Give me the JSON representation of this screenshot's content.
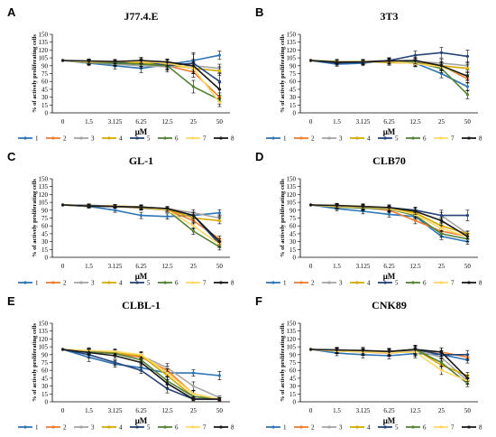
{
  "figure": {
    "y_axis_label": "% of actively proliferating cells",
    "x_axis_label": "μM",
    "legend_labels": [
      "1",
      "2",
      "3",
      "4",
      "5",
      "6",
      "7",
      "8"
    ],
    "series_colors": [
      "#2e75b6",
      "#ed7d31",
      "#a5a5a5",
      "#d4a900",
      "#264478",
      "#548235",
      "#ffd966",
      "#1a1a1a"
    ]
  },
  "chart_data": [
    {
      "type": "line",
      "panel_letter": "A",
      "title": "J77.4.E",
      "categories": [
        "0",
        "1.5",
        "3.125",
        "6.25",
        "12.5",
        "25",
        "50"
      ],
      "ylim": [
        0,
        150
      ],
      "yticks": [
        0,
        15,
        30,
        45,
        60,
        75,
        90,
        105,
        120,
        135,
        150
      ],
      "series": [
        {
          "name": "1",
          "values": [
            100,
            95,
            90,
            85,
            92,
            100,
            110
          ],
          "error": [
            0,
            5,
            6,
            8,
            6,
            12,
            8
          ]
        },
        {
          "name": "2",
          "values": [
            100,
            98,
            97,
            95,
            90,
            78,
            30
          ],
          "error": [
            0,
            4,
            5,
            6,
            8,
            10,
            8
          ]
        },
        {
          "name": "3",
          "values": [
            100,
            96,
            93,
            90,
            88,
            90,
            85
          ],
          "error": [
            0,
            4,
            5,
            5,
            6,
            8,
            8
          ]
        },
        {
          "name": "4",
          "values": [
            100,
            97,
            96,
            95,
            92,
            85,
            80
          ],
          "error": [
            0,
            4,
            5,
            6,
            6,
            10,
            8
          ]
        },
        {
          "name": "5",
          "values": [
            100,
            97,
            95,
            100,
            90,
            95,
            60
          ],
          "error": [
            0,
            4,
            5,
            6,
            12,
            20,
            15
          ]
        },
        {
          "name": "6",
          "values": [
            100,
            96,
            95,
            93,
            90,
            50,
            25
          ],
          "error": [
            0,
            4,
            4,
            5,
            6,
            12,
            8
          ]
        },
        {
          "name": "7",
          "values": [
            100,
            97,
            98,
            98,
            95,
            85,
            20
          ],
          "error": [
            0,
            4,
            4,
            5,
            6,
            10,
            8
          ]
        },
        {
          "name": "8",
          "values": [
            100,
            99,
            98,
            100,
            97,
            90,
            45
          ],
          "error": [
            0,
            4,
            4,
            5,
            6,
            12,
            12
          ]
        }
      ]
    },
    {
      "type": "line",
      "panel_letter": "B",
      "title": "3T3",
      "categories": [
        "0",
        "1.5",
        "3.125",
        "6.25",
        "12.5",
        "25",
        "50"
      ],
      "ylim": [
        0,
        150
      ],
      "yticks": [
        0,
        15,
        30,
        45,
        60,
        75,
        90,
        105,
        120,
        135,
        150
      ],
      "series": [
        {
          "name": "1",
          "values": [
            100,
            93,
            95,
            100,
            95,
            75,
            50
          ],
          "error": [
            0,
            4,
            5,
            5,
            6,
            8,
            8
          ]
        },
        {
          "name": "2",
          "values": [
            100,
            97,
            98,
            100,
            98,
            90,
            65
          ],
          "error": [
            0,
            4,
            4,
            5,
            6,
            8,
            8
          ]
        },
        {
          "name": "3",
          "values": [
            100,
            98,
            97,
            100,
            98,
            95,
            90
          ],
          "error": [
            0,
            4,
            4,
            5,
            6,
            8,
            8
          ]
        },
        {
          "name": "4",
          "values": [
            100,
            98,
            98,
            96,
            95,
            90,
            85
          ],
          "error": [
            0,
            4,
            4,
            5,
            6,
            8,
            8
          ]
        },
        {
          "name": "5",
          "values": [
            100,
            95,
            97,
            100,
            110,
            115,
            108
          ],
          "error": [
            0,
            4,
            5,
            5,
            8,
            10,
            12
          ]
        },
        {
          "name": "6",
          "values": [
            100,
            98,
            97,
            98,
            96,
            85,
            35
          ],
          "error": [
            0,
            4,
            4,
            5,
            6,
            8,
            8
          ]
        },
        {
          "name": "7",
          "values": [
            100,
            98,
            97,
            98,
            94,
            88,
            70
          ],
          "error": [
            0,
            4,
            4,
            5,
            6,
            8,
            8
          ]
        },
        {
          "name": "8",
          "values": [
            100,
            97,
            97,
            99,
            100,
            90,
            70
          ],
          "error": [
            0,
            4,
            4,
            5,
            6,
            8,
            8
          ]
        }
      ]
    },
    {
      "type": "line",
      "panel_letter": "C",
      "title": "GL-1",
      "categories": [
        "0",
        "1.5",
        "3.125",
        "6.25",
        "12.5",
        "25",
        "50"
      ],
      "ylim": [
        0,
        150
      ],
      "yticks": [
        0,
        15,
        30,
        45,
        60,
        75,
        90,
        105,
        120,
        135,
        150
      ],
      "series": [
        {
          "name": "1",
          "values": [
            100,
            97,
            90,
            80,
            78,
            80,
            85
          ],
          "error": [
            0,
            3,
            4,
            6,
            5,
            6,
            6
          ]
        },
        {
          "name": "2",
          "values": [
            100,
            98,
            97,
            94,
            90,
            70,
            35
          ],
          "error": [
            0,
            3,
            3,
            4,
            4,
            6,
            6
          ]
        },
        {
          "name": "3",
          "values": [
            100,
            99,
            98,
            96,
            93,
            85,
            75
          ],
          "error": [
            0,
            3,
            3,
            4,
            4,
            6,
            6
          ]
        },
        {
          "name": "4",
          "values": [
            100,
            99,
            98,
            96,
            92,
            75,
            70
          ],
          "error": [
            0,
            3,
            3,
            4,
            4,
            6,
            6
          ]
        },
        {
          "name": "5",
          "values": [
            100,
            99,
            98,
            95,
            93,
            80,
            25
          ],
          "error": [
            0,
            3,
            3,
            4,
            4,
            6,
            6
          ]
        },
        {
          "name": "6",
          "values": [
            100,
            98,
            97,
            95,
            90,
            50,
            20
          ],
          "error": [
            0,
            3,
            3,
            4,
            4,
            6,
            6
          ]
        },
        {
          "name": "7",
          "values": [
            100,
            98,
            98,
            96,
            90,
            60,
            25
          ],
          "error": [
            0,
            3,
            3,
            4,
            4,
            6,
            6
          ]
        },
        {
          "name": "8",
          "values": [
            100,
            98,
            97,
            96,
            93,
            80,
            30
          ],
          "error": [
            0,
            3,
            3,
            4,
            4,
            6,
            6
          ]
        }
      ]
    },
    {
      "type": "line",
      "panel_letter": "D",
      "title": "CLB70",
      "categories": [
        "0",
        "1.5",
        "3.125",
        "6.25",
        "12.5",
        "25",
        "50"
      ],
      "ylim": [
        0,
        150
      ],
      "yticks": [
        0,
        15,
        30,
        45,
        60,
        75,
        90,
        105,
        120,
        135,
        150
      ],
      "series": [
        {
          "name": "1",
          "values": [
            100,
            93,
            88,
            82,
            78,
            40,
            30
          ],
          "error": [
            0,
            4,
            5,
            5,
            6,
            6,
            5
          ]
        },
        {
          "name": "2",
          "values": [
            100,
            98,
            95,
            90,
            70,
            50,
            40
          ],
          "error": [
            0,
            4,
            5,
            5,
            6,
            6,
            5
          ]
        },
        {
          "name": "3",
          "values": [
            100,
            98,
            97,
            95,
            90,
            80,
            45
          ],
          "error": [
            0,
            4,
            5,
            5,
            6,
            6,
            5
          ]
        },
        {
          "name": "4",
          "values": [
            100,
            99,
            97,
            93,
            85,
            60,
            45
          ],
          "error": [
            0,
            4,
            5,
            5,
            6,
            6,
            5
          ]
        },
        {
          "name": "5",
          "values": [
            100,
            97,
            95,
            95,
            90,
            80,
            80
          ],
          "error": [
            0,
            4,
            5,
            5,
            6,
            10,
            10
          ]
        },
        {
          "name": "6",
          "values": [
            100,
            96,
            94,
            92,
            80,
            45,
            35
          ],
          "error": [
            0,
            4,
            5,
            5,
            6,
            6,
            5
          ]
        },
        {
          "name": "7",
          "values": [
            100,
            97,
            96,
            93,
            82,
            55,
            40
          ],
          "error": [
            0,
            4,
            5,
            5,
            6,
            6,
            5
          ]
        },
        {
          "name": "8",
          "values": [
            100,
            99,
            97,
            95,
            88,
            70,
            40
          ],
          "error": [
            0,
            4,
            5,
            5,
            6,
            6,
            5
          ]
        }
      ]
    },
    {
      "type": "line",
      "panel_letter": "E",
      "title": "CLBL-1",
      "categories": [
        "0",
        "1.5",
        "3.125",
        "6.25",
        "12.5",
        "25",
        "50"
      ],
      "ylim": [
        0,
        150
      ],
      "yticks": [
        0,
        15,
        30,
        45,
        60,
        75,
        90,
        105,
        120,
        135,
        150
      ],
      "series": [
        {
          "name": "1",
          "values": [
            100,
            85,
            72,
            65,
            55,
            55,
            50
          ],
          "error": [
            0,
            8,
            6,
            6,
            6,
            6,
            8
          ]
        },
        {
          "name": "2",
          "values": [
            100,
            95,
            92,
            85,
            60,
            15,
            5
          ],
          "error": [
            0,
            5,
            5,
            6,
            8,
            6,
            3
          ]
        },
        {
          "name": "3",
          "values": [
            100,
            96,
            94,
            88,
            65,
            30,
            8
          ],
          "error": [
            0,
            5,
            5,
            6,
            8,
            8,
            3
          ]
        },
        {
          "name": "4",
          "values": [
            100,
            97,
            94,
            88,
            50,
            10,
            5
          ],
          "error": [
            0,
            5,
            5,
            6,
            8,
            6,
            3
          ]
        },
        {
          "name": "5",
          "values": [
            100,
            90,
            75,
            60,
            25,
            5,
            5
          ],
          "error": [
            0,
            6,
            5,
            6,
            8,
            3,
            3
          ]
        },
        {
          "name": "6",
          "values": [
            100,
            96,
            92,
            80,
            40,
            10,
            5
          ],
          "error": [
            0,
            5,
            5,
            6,
            8,
            5,
            3
          ]
        },
        {
          "name": "7",
          "values": [
            100,
            98,
            96,
            90,
            55,
            15,
            5
          ],
          "error": [
            0,
            5,
            5,
            6,
            8,
            6,
            3
          ]
        },
        {
          "name": "8",
          "values": [
            100,
            94,
            88,
            75,
            35,
            5,
            5
          ],
          "error": [
            0,
            5,
            5,
            6,
            8,
            3,
            3
          ]
        }
      ]
    },
    {
      "type": "line",
      "panel_letter": "F",
      "title": "CNK89",
      "categories": [
        "0",
        "1.5",
        "3.125",
        "6.25",
        "12.5",
        "25",
        "50"
      ],
      "ylim": [
        0,
        150
      ],
      "yticks": [
        0,
        15,
        30,
        45,
        60,
        75,
        90,
        105,
        120,
        135,
        150
      ],
      "series": [
        {
          "name": "1",
          "values": [
            100,
            93,
            90,
            88,
            92,
            90,
            80
          ],
          "error": [
            0,
            5,
            6,
            6,
            8,
            8,
            6
          ]
        },
        {
          "name": "2",
          "values": [
            100,
            98,
            95,
            93,
            97,
            95,
            85
          ],
          "error": [
            0,
            5,
            6,
            6,
            8,
            8,
            6
          ]
        },
        {
          "name": "3",
          "values": [
            100,
            98,
            95,
            95,
            98,
            85,
            40
          ],
          "error": [
            0,
            5,
            6,
            6,
            8,
            8,
            6
          ]
        },
        {
          "name": "4",
          "values": [
            100,
            97,
            95,
            96,
            100,
            70,
            50
          ],
          "error": [
            0,
            5,
            6,
            6,
            8,
            8,
            6
          ]
        },
        {
          "name": "5",
          "values": [
            100,
            97,
            96,
            96,
            100,
            90,
            90
          ],
          "error": [
            0,
            5,
            6,
            6,
            8,
            8,
            8
          ]
        },
        {
          "name": "6",
          "values": [
            100,
            98,
            96,
            95,
            100,
            75,
            35
          ],
          "error": [
            0,
            5,
            6,
            6,
            8,
            8,
            6
          ]
        },
        {
          "name": "7",
          "values": [
            100,
            97,
            95,
            94,
            95,
            60,
            40
          ],
          "error": [
            0,
            5,
            6,
            6,
            8,
            8,
            6
          ]
        },
        {
          "name": "8",
          "values": [
            100,
            99,
            98,
            96,
            100,
            95,
            45
          ],
          "error": [
            0,
            5,
            6,
            6,
            8,
            8,
            6
          ]
        }
      ]
    }
  ]
}
